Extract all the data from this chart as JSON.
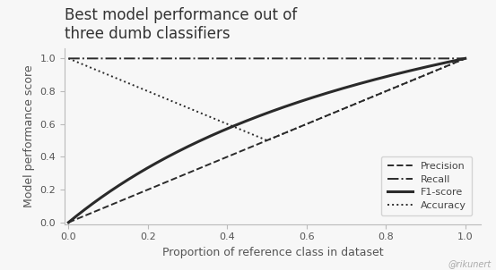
{
  "title": "Best model performance out of\nthree dumb classifiers",
  "xlabel": "Proportion of reference class in dataset",
  "ylabel": "Model performance score",
  "watermark": "@rikunert",
  "xticks": [
    0.0,
    0.2,
    0.4,
    0.6,
    0.8,
    1.0
  ],
  "yticks": [
    0.0,
    0.2,
    0.4,
    0.6,
    0.8,
    1.0
  ],
  "legend_labels": [
    "Precision",
    "Recall",
    "F1-score",
    "Accuracy"
  ],
  "line_color": "#2a2a2a",
  "bg_color": "#f7f7f7",
  "title_fontsize": 12,
  "label_fontsize": 9,
  "tick_fontsize": 8,
  "legend_fontsize": 8,
  "linewidth_thin": 1.4,
  "linewidth_thick": 2.2
}
